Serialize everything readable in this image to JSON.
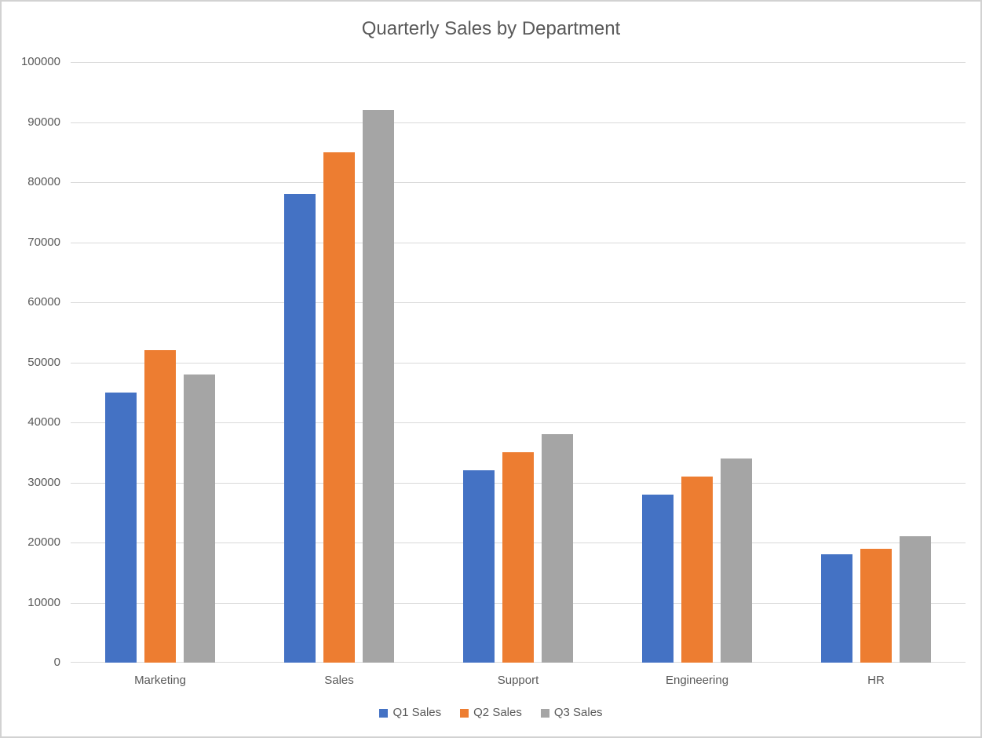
{
  "chart_data": {
    "type": "bar",
    "title": "Quarterly Sales by Department",
    "categories": [
      "Marketing",
      "Sales",
      "Support",
      "Engineering",
      "HR"
    ],
    "series": [
      {
        "name": "Q1 Sales",
        "color": "#4472C4",
        "values": [
          45000,
          78000,
          32000,
          28000,
          18000
        ]
      },
      {
        "name": "Q2 Sales",
        "color": "#ED7D31",
        "values": [
          52000,
          85000,
          35000,
          31000,
          19000
        ]
      },
      {
        "name": "Q3 Sales",
        "color": "#A5A5A5",
        "values": [
          48000,
          92000,
          38000,
          34000,
          21000
        ]
      }
    ],
    "xlabel": "",
    "ylabel": "",
    "ylim": [
      0,
      100000
    ],
    "y_tick_step": 10000,
    "y_tick_labels": [
      "0",
      "10000",
      "20000",
      "30000",
      "40000",
      "50000",
      "60000",
      "70000",
      "80000",
      "90000",
      "100000"
    ],
    "grid": "horizontal",
    "legend_position": "bottom",
    "text_color": "#595959",
    "gridline_color": "#D9D9D9"
  }
}
